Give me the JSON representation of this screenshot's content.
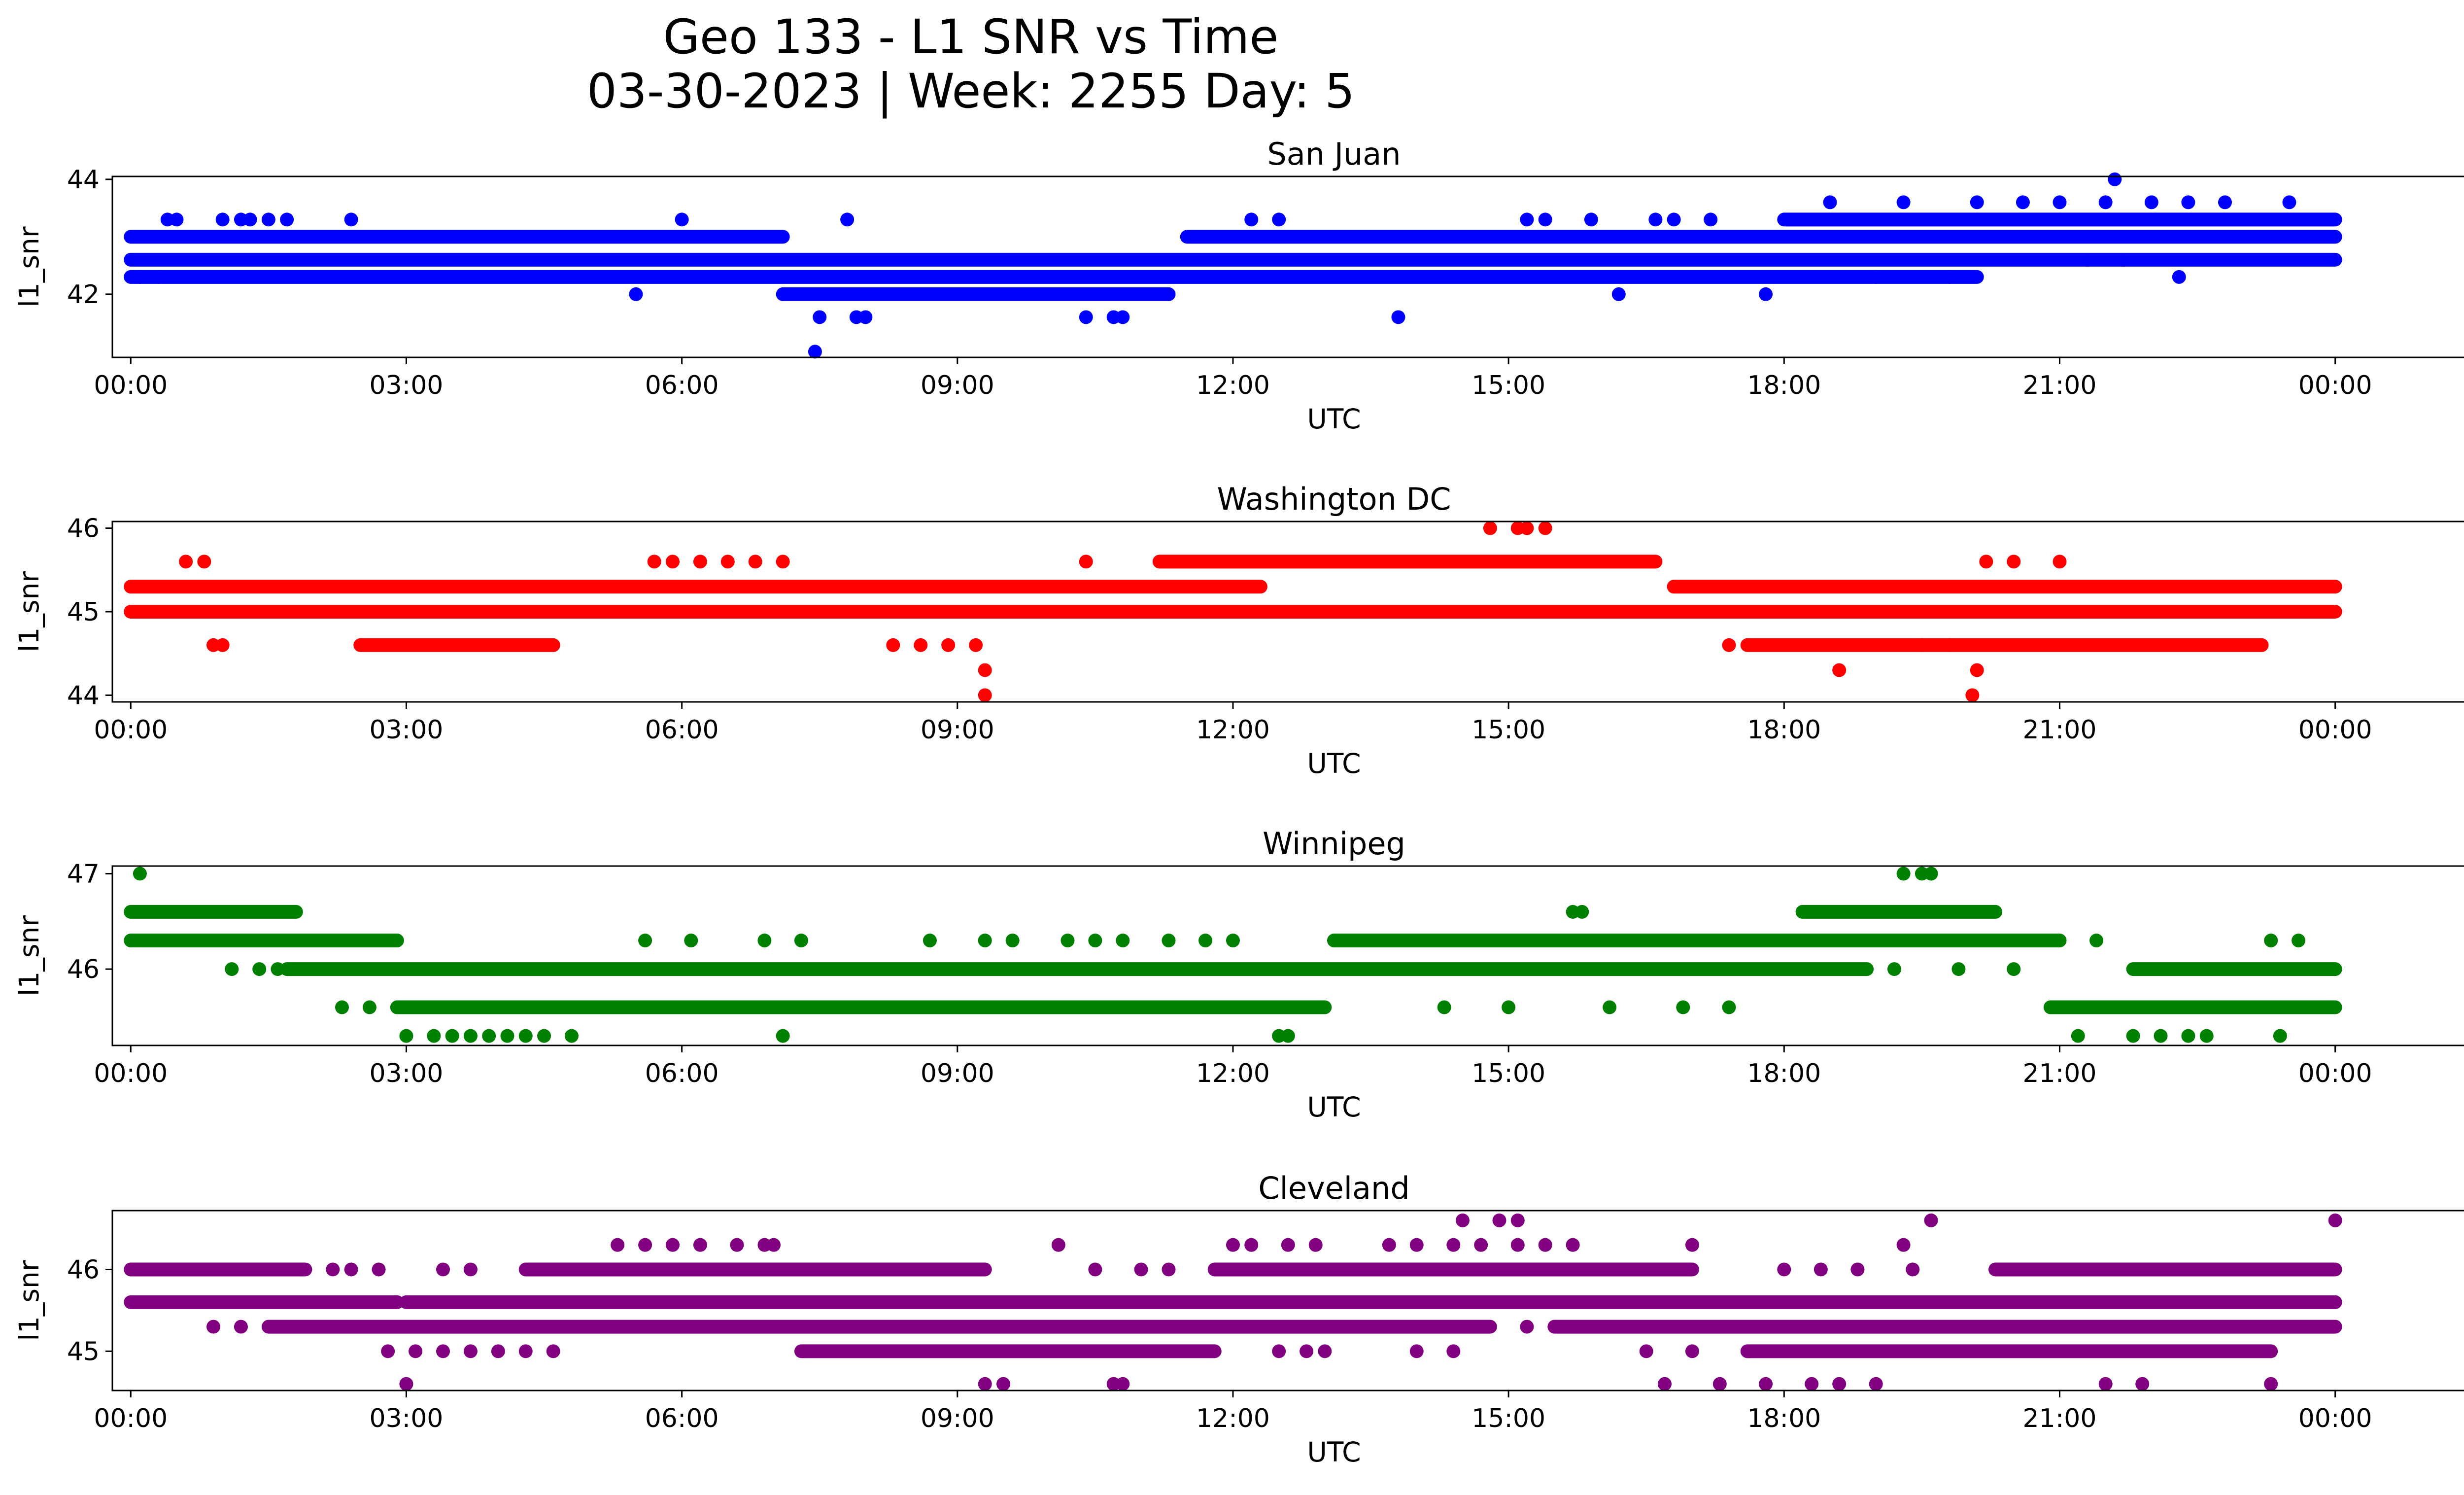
{
  "figure": {
    "title_line1": "Geo 133 - L1 SNR vs Time",
    "title_line2": "03-30-2023 | Week: 2255 Day: 5"
  },
  "chart_data": [
    {
      "type": "scatter",
      "title": "San Juan",
      "xlabel": "UTC",
      "ylabel": "l1_snr",
      "color": "#0000ff",
      "xlim": [
        -0.2,
        26.4
      ],
      "ylim": [
        40.9,
        44.05
      ],
      "xticks": [
        "00:00",
        "03:00",
        "06:00",
        "09:00",
        "12:00",
        "15:00",
        "18:00",
        "21:00",
        "00:00"
      ],
      "yticks": [
        42,
        44
      ],
      "series": [
        {
          "name": "dense",
          "bands": [
            {
              "y": 42.6,
              "from": 0.0,
              "to": 24.0
            },
            {
              "y": 43.0,
              "from": 0.0,
              "to": 7.1
            },
            {
              "y": 43.0,
              "from": 11.5,
              "to": 24.0
            },
            {
              "y": 42.3,
              "from": 0.0,
              "to": 20.1
            },
            {
              "y": 42.0,
              "from": 7.1,
              "to": 11.3
            },
            {
              "y": 43.3,
              "from": 18.0,
              "to": 24.0
            }
          ]
        },
        {
          "name": "outliers",
          "points": [
            [
              0.1,
              42.3
            ],
            [
              0.3,
              42.3
            ],
            [
              0.4,
              43.3
            ],
            [
              0.5,
              43.3
            ],
            [
              1.0,
              43.3
            ],
            [
              1.2,
              43.3
            ],
            [
              1.3,
              43.3
            ],
            [
              1.5,
              43.3
            ],
            [
              1.7,
              43.3
            ],
            [
              2.4,
              43.3
            ],
            [
              5.5,
              42.0
            ],
            [
              6.0,
              43.3
            ],
            [
              7.5,
              41.6
            ],
            [
              7.45,
              41.0
            ],
            [
              7.8,
              43.3
            ],
            [
              7.9,
              41.6
            ],
            [
              8.0,
              41.6
            ],
            [
              10.4,
              41.6
            ],
            [
              10.7,
              41.6
            ],
            [
              10.8,
              41.6
            ],
            [
              12.2,
              43.3
            ],
            [
              12.5,
              43.3
            ],
            [
              13.8,
              41.6
            ],
            [
              15.2,
              43.3
            ],
            [
              15.4,
              43.3
            ],
            [
              15.9,
              43.3
            ],
            [
              16.2,
              42.0
            ],
            [
              16.6,
              43.3
            ],
            [
              16.8,
              43.3
            ],
            [
              17.2,
              43.3
            ],
            [
              17.8,
              42.0
            ],
            [
              18.5,
              43.6
            ],
            [
              19.3,
              43.6
            ],
            [
              20.1,
              43.6
            ],
            [
              20.6,
              43.6
            ],
            [
              21.0,
              43.6
            ],
            [
              21.5,
              43.6
            ],
            [
              21.6,
              44.0
            ],
            [
              22.0,
              43.6
            ],
            [
              22.4,
              43.6
            ],
            [
              22.8,
              43.6
            ],
            [
              23.5,
              43.6
            ],
            [
              19.0,
              42.3
            ],
            [
              19.8,
              42.3
            ],
            [
              22.3,
              42.3
            ],
            [
              21.3,
              42.6
            ],
            [
              21.7,
              42.6
            ]
          ]
        }
      ]
    },
    {
      "type": "scatter",
      "title": "Washington DC",
      "xlabel": "UTC",
      "ylabel": "l1_snr",
      "color": "#ff0000",
      "xlim": [
        -0.2,
        26.4
      ],
      "ylim": [
        43.92,
        46.08
      ],
      "xticks": [
        "00:00",
        "03:00",
        "06:00",
        "09:00",
        "12:00",
        "15:00",
        "18:00",
        "21:00",
        "00:00"
      ],
      "yticks": [
        44,
        45,
        46
      ],
      "series": [
        {
          "name": "dense",
          "bands": [
            {
              "y": 45.0,
              "from": 0.0,
              "to": 24.0
            },
            {
              "y": 45.3,
              "from": 0.0,
              "to": 12.3
            },
            {
              "y": 45.3,
              "from": 16.8,
              "to": 24.0
            },
            {
              "y": 45.6,
              "from": 11.2,
              "to": 16.6
            },
            {
              "y": 44.6,
              "from": 2.5,
              "to": 4.6
            },
            {
              "y": 44.6,
              "from": 17.6,
              "to": 23.2
            }
          ]
        },
        {
          "name": "outliers",
          "points": [
            [
              0.6,
              45.6
            ],
            [
              0.8,
              45.6
            ],
            [
              1.0,
              44.6
            ],
            [
              0.9,
              44.6
            ],
            [
              5.7,
              45.6
            ],
            [
              5.9,
              45.6
            ],
            [
              6.2,
              45.6
            ],
            [
              6.5,
              45.6
            ],
            [
              6.8,
              45.6
            ],
            [
              7.1,
              45.6
            ],
            [
              8.3,
              44.6
            ],
            [
              8.6,
              44.6
            ],
            [
              8.9,
              44.6
            ],
            [
              9.2,
              44.6
            ],
            [
              9.3,
              44.3
            ],
            [
              9.3,
              44.0
            ],
            [
              10.4,
              45.6
            ],
            [
              12.4,
              45.0
            ],
            [
              13.0,
              45.0
            ],
            [
              13.5,
              45.0
            ],
            [
              14.2,
              45.0
            ],
            [
              14.8,
              46.0
            ],
            [
              15.1,
              46.0
            ],
            [
              15.2,
              46.0
            ],
            [
              15.4,
              46.0
            ],
            [
              15.6,
              45.0
            ],
            [
              18.6,
              44.3
            ],
            [
              20.1,
              44.3
            ],
            [
              20.05,
              44.0
            ],
            [
              20.2,
              45.6
            ],
            [
              20.5,
              45.6
            ],
            [
              21.0,
              45.6
            ],
            [
              17.4,
              44.6
            ],
            [
              19.5,
              44.6
            ],
            [
              19.8,
              44.6
            ]
          ]
        }
      ]
    },
    {
      "type": "scatter",
      "title": "Winnipeg",
      "xlabel": "UTC",
      "ylabel": "l1_snr",
      "color": "#008000",
      "xlim": [
        -0.2,
        26.4
      ],
      "ylim": [
        45.2,
        47.08
      ],
      "xticks": [
        "00:00",
        "03:00",
        "06:00",
        "09:00",
        "12:00",
        "15:00",
        "18:00",
        "21:00",
        "00:00"
      ],
      "yticks": [
        46,
        47
      ],
      "series": [
        {
          "name": "dense",
          "bands": [
            {
              "y": 46.6,
              "from": 0.0,
              "to": 1.8
            },
            {
              "y": 46.3,
              "from": 0.0,
              "to": 2.9
            },
            {
              "y": 46.3,
              "from": 13.1,
              "to": 21.0
            },
            {
              "y": 46.0,
              "from": 1.7,
              "to": 18.9
            },
            {
              "y": 46.0,
              "from": 21.8,
              "to": 24.0
            },
            {
              "y": 45.6,
              "from": 2.9,
              "to": 13.0
            },
            {
              "y": 45.6,
              "from": 20.9,
              "to": 24.0
            },
            {
              "y": 46.6,
              "from": 18.2,
              "to": 20.3
            }
          ]
        },
        {
          "name": "outliers",
          "points": [
            [
              0.1,
              47.0
            ],
            [
              1.1,
              46.0
            ],
            [
              1.4,
              46.0
            ],
            [
              1.6,
              46.0
            ],
            [
              2.3,
              45.6
            ],
            [
              2.6,
              45.6
            ],
            [
              3.0,
              45.3
            ],
            [
              3.3,
              45.3
            ],
            [
              3.5,
              45.3
            ],
            [
              3.7,
              45.3
            ],
            [
              3.9,
              45.3
            ],
            [
              4.1,
              45.3
            ],
            [
              4.3,
              45.3
            ],
            [
              4.5,
              45.3
            ],
            [
              4.8,
              45.3
            ],
            [
              5.6,
              46.3
            ],
            [
              6.1,
              46.3
            ],
            [
              6.9,
              46.3
            ],
            [
              7.3,
              46.3
            ],
            [
              7.1,
              45.3
            ],
            [
              8.7,
              46.3
            ],
            [
              9.3,
              46.3
            ],
            [
              9.6,
              46.3
            ],
            [
              10.2,
              46.3
            ],
            [
              10.5,
              46.3
            ],
            [
              10.8,
              46.3
            ],
            [
              11.3,
              46.3
            ],
            [
              11.7,
              46.3
            ],
            [
              12.0,
              46.3
            ],
            [
              12.5,
              45.3
            ],
            [
              12.6,
              45.3
            ],
            [
              15.7,
              46.6
            ],
            [
              15.8,
              46.6
            ],
            [
              19.3,
              47.0
            ],
            [
              19.5,
              47.0
            ],
            [
              19.6,
              47.0
            ],
            [
              19.2,
              46.0
            ],
            [
              19.9,
              46.0
            ],
            [
              21.2,
              45.3
            ],
            [
              21.8,
              45.3
            ],
            [
              22.1,
              45.3
            ],
            [
              22.4,
              45.3
            ],
            [
              22.6,
              45.3
            ],
            [
              23.4,
              45.3
            ],
            [
              23.3,
              46.3
            ],
            [
              23.6,
              46.3
            ],
            [
              21.4,
              46.3
            ],
            [
              20.5,
              46.0
            ],
            [
              14.3,
              45.6
            ],
            [
              15.0,
              45.6
            ],
            [
              16.1,
              45.6
            ],
            [
              16.9,
              45.6
            ],
            [
              17.4,
              45.6
            ]
          ]
        }
      ]
    },
    {
      "type": "scatter",
      "title": "Cleveland",
      "xlabel": "UTC",
      "ylabel": "l1_snr",
      "color": "#800080",
      "xlim": [
        -0.2,
        26.4
      ],
      "ylim": [
        44.52,
        46.72
      ],
      "xticks": [
        "00:00",
        "03:00",
        "06:00",
        "09:00",
        "12:00",
        "15:00",
        "18:00",
        "21:00",
        "00:00"
      ],
      "yticks": [
        45,
        46
      ],
      "series": [
        {
          "name": "dense",
          "bands": [
            {
              "y": 45.6,
              "from": 0.0,
              "to": 2.9
            },
            {
              "y": 45.6,
              "from": 3.0,
              "to": 24.0
            },
            {
              "y": 46.0,
              "from": 0.0,
              "to": 1.9
            },
            {
              "y": 46.0,
              "from": 4.3,
              "to": 9.3
            },
            {
              "y": 46.0,
              "from": 11.8,
              "to": 17.0
            },
            {
              "y": 46.0,
              "from": 20.3,
              "to": 24.0
            },
            {
              "y": 45.3,
              "from": 1.5,
              "to": 14.8
            },
            {
              "y": 45.3,
              "from": 15.5,
              "to": 24.0
            },
            {
              "y": 45.0,
              "from": 7.3,
              "to": 11.8
            },
            {
              "y": 45.0,
              "from": 17.6,
              "to": 23.3
            }
          ]
        },
        {
          "name": "outliers",
          "points": [
            [
              0.9,
              45.3
            ],
            [
              1.2,
              45.3
            ],
            [
              2.2,
              46.0
            ],
            [
              2.4,
              46.0
            ],
            [
              2.7,
              46.0
            ],
            [
              2.8,
              45.0
            ],
            [
              3.1,
              45.0
            ],
            [
              3.4,
              45.0
            ],
            [
              3.7,
              45.0
            ],
            [
              4.0,
              45.0
            ],
            [
              4.3,
              45.0
            ],
            [
              4.6,
              45.0
            ],
            [
              3.4,
              46.0
            ],
            [
              3.7,
              46.0
            ],
            [
              3.0,
              44.6
            ],
            [
              5.3,
              46.3
            ],
            [
              5.6,
              46.3
            ],
            [
              5.9,
              46.3
            ],
            [
              6.2,
              46.3
            ],
            [
              6.6,
              46.3
            ],
            [
              6.9,
              46.3
            ],
            [
              7.0,
              46.3
            ],
            [
              9.3,
              44.6
            ],
            [
              9.5,
              44.6
            ],
            [
              10.1,
              46.3
            ],
            [
              10.7,
              44.6
            ],
            [
              10.8,
              44.6
            ],
            [
              10.5,
              46.0
            ],
            [
              11.0,
              46.0
            ],
            [
              11.3,
              46.0
            ],
            [
              12.0,
              46.3
            ],
            [
              12.2,
              46.3
            ],
            [
              12.6,
              46.3
            ],
            [
              12.9,
              46.3
            ],
            [
              12.5,
              45.0
            ],
            [
              12.8,
              45.0
            ],
            [
              13.0,
              45.0
            ],
            [
              13.7,
              46.3
            ],
            [
              14.0,
              46.3
            ],
            [
              14.4,
              46.3
            ],
            [
              14.7,
              46.3
            ],
            [
              15.1,
              46.3
            ],
            [
              15.4,
              46.3
            ],
            [
              15.7,
              46.3
            ],
            [
              14.5,
              46.6
            ],
            [
              14.9,
              46.6
            ],
            [
              15.1,
              46.6
            ],
            [
              14.0,
              45.0
            ],
            [
              14.4,
              45.0
            ],
            [
              15.2,
              45.3
            ],
            [
              16.7,
              44.6
            ],
            [
              17.0,
              46.3
            ],
            [
              17.3,
              44.6
            ],
            [
              17.8,
              44.6
            ],
            [
              18.3,
              44.6
            ],
            [
              18.6,
              44.6
            ],
            [
              19.0,
              44.6
            ],
            [
              19.6,
              46.6
            ],
            [
              19.3,
              46.3
            ],
            [
              18.0,
              46.0
            ],
            [
              18.4,
              46.0
            ],
            [
              18.8,
              46.0
            ],
            [
              19.4,
              46.0
            ],
            [
              21.5,
              44.6
            ],
            [
              21.9,
              44.6
            ],
            [
              23.3,
              44.6
            ],
            [
              24.0,
              46.6
            ],
            [
              21.2,
              46.0
            ],
            [
              21.5,
              46.0
            ],
            [
              21.8,
              46.0
            ],
            [
              16.5,
              45.0
            ],
            [
              17.0,
              45.0
            ]
          ]
        }
      ]
    }
  ]
}
